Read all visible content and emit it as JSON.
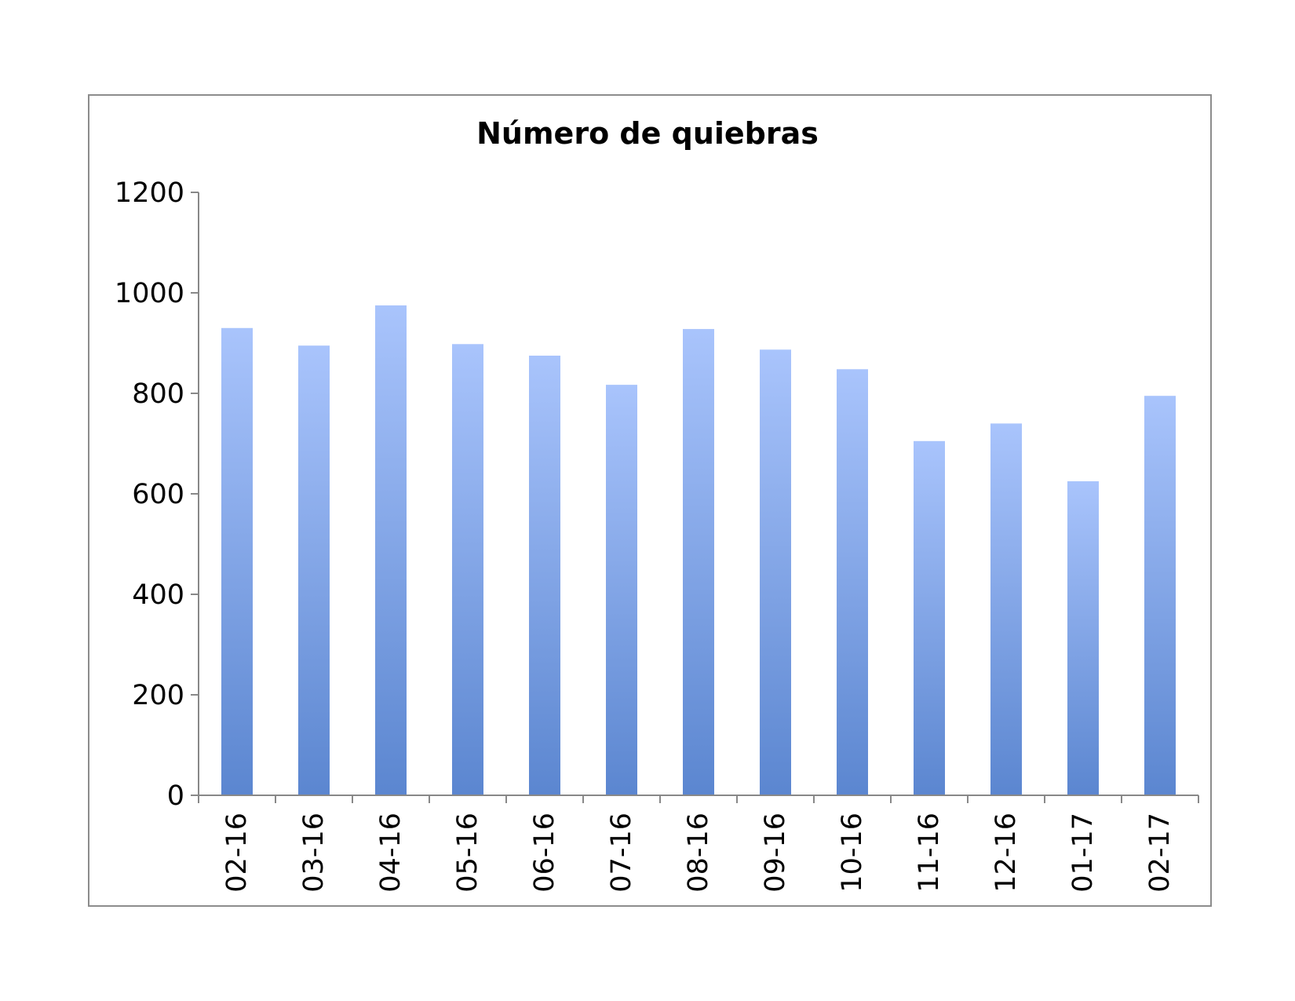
{
  "chart_data": {
    "type": "bar",
    "title": "Número de quiebras",
    "xlabel": "",
    "ylabel": "",
    "categories": [
      "02-16",
      "03-16",
      "04-16",
      "05-16",
      "06-16",
      "07-16",
      "08-16",
      "09-16",
      "10-16",
      "11-16",
      "12-16",
      "01-17",
      "02-17"
    ],
    "values": [
      930,
      895,
      975,
      898,
      875,
      817,
      928,
      887,
      848,
      705,
      740,
      625,
      795
    ],
    "ylim": [
      0,
      1200
    ],
    "yticks": [
      "0",
      "200",
      "400",
      "600",
      "800",
      "1000",
      "1200"
    ],
    "grid": false,
    "legend": "none",
    "colors": {
      "bar_top": "#a9c4fc",
      "bar_bottom": "#5b86d0",
      "axis": "#888888",
      "frame": "#8c8c8c"
    }
  }
}
